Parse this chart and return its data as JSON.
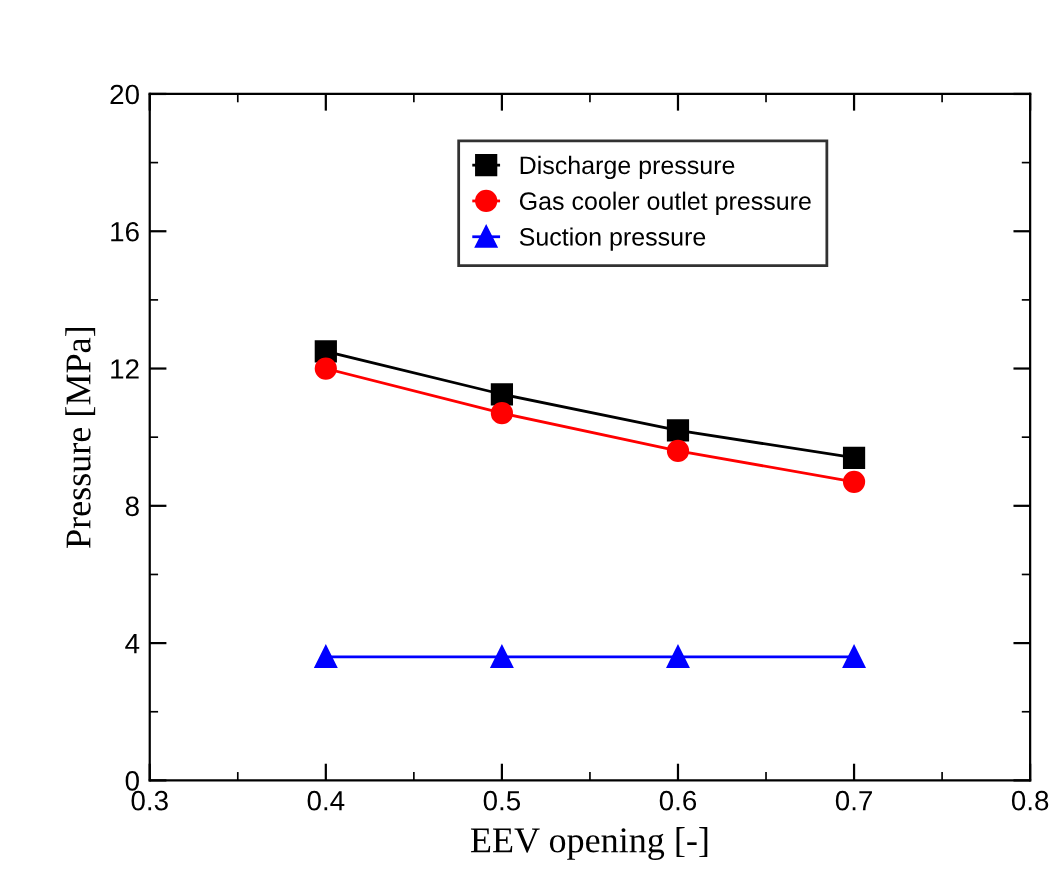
{
  "chart_data": {
    "type": "line",
    "xlabel": "EEV opening [-]",
    "ylabel": "Pressure [MPa]",
    "x": [
      0.4,
      0.5,
      0.6,
      0.7
    ],
    "series": [
      {
        "name": "Discharge pressure",
        "color": "#000000",
        "marker": "square",
        "values": [
          12.5,
          11.25,
          10.2,
          9.4
        ]
      },
      {
        "name": "Gas cooler outlet pressure",
        "color": "#ff0000",
        "marker": "circle",
        "values": [
          12.0,
          10.7,
          9.6,
          8.7
        ]
      },
      {
        "name": "Suction pressure",
        "color": "#0000ff",
        "marker": "triangle",
        "values": [
          3.6,
          3.6,
          3.6,
          3.6
        ]
      }
    ],
    "xlim": [
      0.3,
      0.8
    ],
    "xticks": [
      0.3,
      0.4,
      0.5,
      0.6,
      0.7,
      0.8
    ],
    "ylim": [
      0,
      20
    ],
    "yticks": [
      0,
      4,
      8,
      12,
      16,
      20
    ],
    "grid": false,
    "legend": "top",
    "line_style": "solid"
  }
}
